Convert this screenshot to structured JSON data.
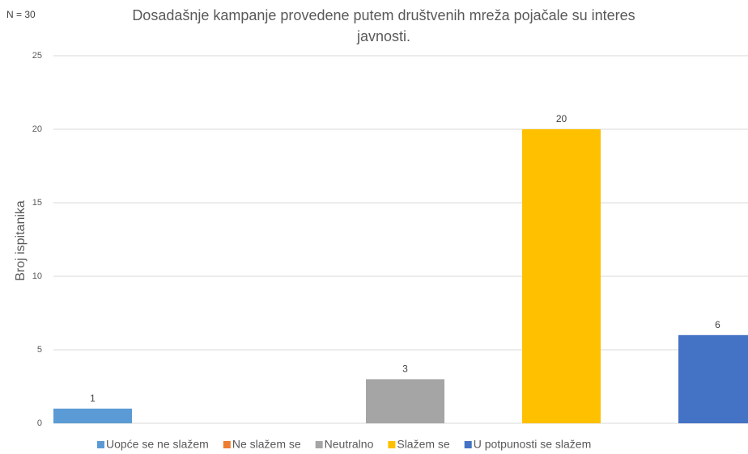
{
  "chart_data": {
    "type": "bar",
    "title": [
      "Dosadašnje kampanje provedene putem društvenih mreža pojačale su interes",
      "javnosti."
    ],
    "note": "N = 30",
    "ylabel": "Broj ispitanika",
    "series": [
      {
        "name": "Uopće se ne slažem",
        "color": "#5b9bd5",
        "values": [
          1
        ]
      },
      {
        "name": "Ne slažem se",
        "color": "#ed7d31",
        "values": [
          0
        ]
      },
      {
        "name": "Neutralno",
        "color": "#a5a5a5",
        "values": [
          3
        ]
      },
      {
        "name": "Slažem se",
        "color": "#ffc000",
        "values": [
          20
        ]
      },
      {
        "name": "U potpunosti se slažem",
        "color": "#4472c4",
        "values": [
          6
        ]
      }
    ],
    "ylim": [
      0,
      25
    ],
    "yticks": [
      0,
      5,
      10,
      15,
      20,
      25
    ],
    "grid": true,
    "legend": "bottom"
  }
}
